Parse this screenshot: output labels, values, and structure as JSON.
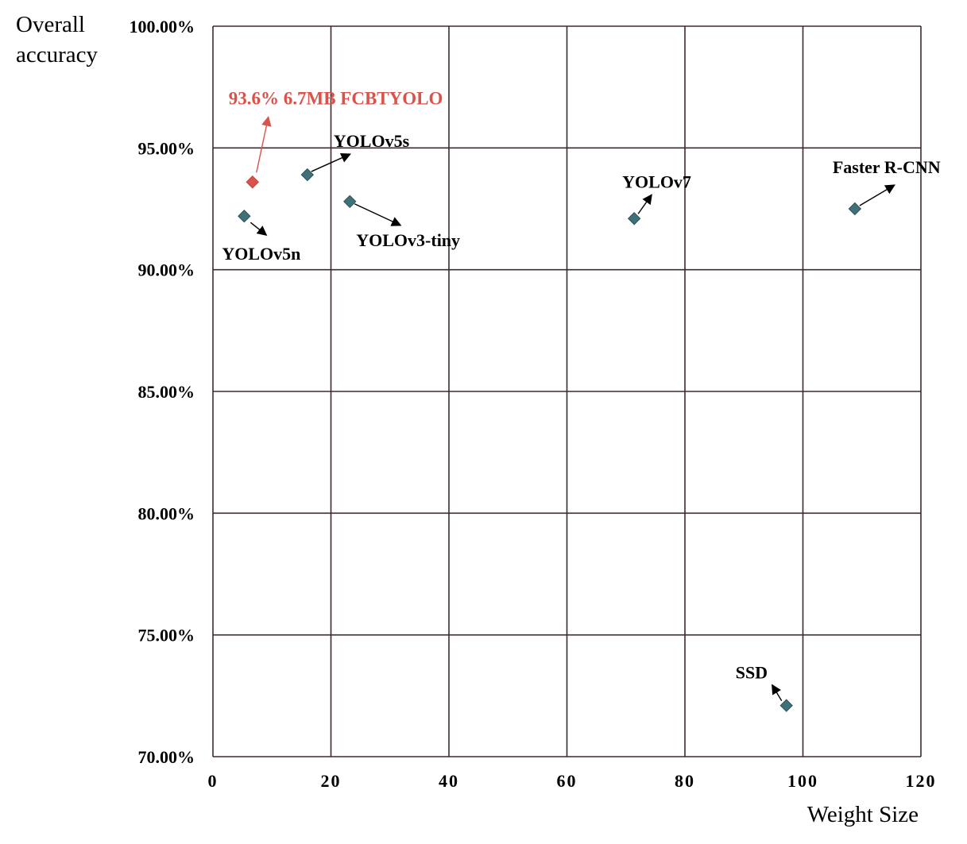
{
  "chart_data": {
    "type": "scatter",
    "title": "",
    "xlabel": "Weight Size",
    "ylabel": [
      "Overall",
      "accuracy"
    ],
    "xlim": [
      0,
      120
    ],
    "ylim": [
      70,
      100
    ],
    "x_ticks": [
      "0",
      "20",
      "40",
      "60",
      "80",
      "100",
      "120"
    ],
    "y_ticks": [
      "70.00%",
      "75.00%",
      "80.00%",
      "85.00%",
      "90.00%",
      "95.00%",
      "100.00%"
    ],
    "grid": true,
    "legend": "none",
    "colors": {
      "marker": "#3f7178",
      "highlight": "#d9534a",
      "grid": "#3b2b30"
    },
    "points": [
      {
        "name": "YOLOv5n",
        "label": "YOLOv5n",
        "x": 5.3,
        "y": 92.2,
        "highlight": false
      },
      {
        "name": "FCBTYOLO",
        "label": "93.6% 6.7MB FCBTYOLO",
        "x": 6.7,
        "y": 93.6,
        "highlight": true
      },
      {
        "name": "YOLOv5s",
        "label": "YOLOv5s",
        "x": 16.0,
        "y": 93.9,
        "highlight": false
      },
      {
        "name": "YOLOv3-tiny",
        "label": "YOLOv3-tiny",
        "x": 23.2,
        "y": 92.8,
        "highlight": false
      },
      {
        "name": "YOLOv7",
        "label": "YOLOv7",
        "x": 71.4,
        "y": 92.1,
        "highlight": false
      },
      {
        "name": "Faster R-CNN",
        "label": "Faster R-CNN",
        "x": 108.8,
        "y": 92.5,
        "highlight": false
      },
      {
        "name": "SSD",
        "label": "SSD",
        "x": 97.2,
        "y": 72.1,
        "highlight": false
      }
    ]
  }
}
